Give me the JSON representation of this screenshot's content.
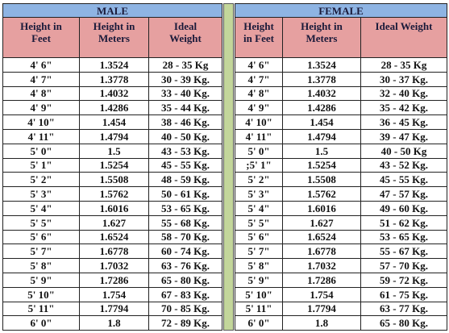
{
  "male": {
    "title": "MALE",
    "columns": [
      "Height in Feet",
      "Height in Meters",
      "Ideal Weight"
    ],
    "rows": [
      [
        "4' 6\"",
        "1.3524",
        "28 - 35 Kg"
      ],
      [
        "4' 7\"",
        "1.3778",
        "30 - 39 Kg."
      ],
      [
        "4' 8\"",
        "1.4032",
        "33 - 40 Kg."
      ],
      [
        "4' 9\"",
        "1.4286",
        "35 - 44 Kg."
      ],
      [
        "4' 10\"",
        "1.454",
        "38 - 46 Kg."
      ],
      [
        "4' 11\"",
        "1.4794",
        "40 - 50 Kg."
      ],
      [
        "5' 0\"",
        "1.5",
        "43 - 53 Kg."
      ],
      [
        "5' 1\"",
        "1.5254",
        "45 - 55 Kg."
      ],
      [
        "5' 2\"",
        "1.5508",
        "48 - 59 Kg."
      ],
      [
        "5' 3\"",
        "1.5762",
        "50 - 61 Kg."
      ],
      [
        "5' 4\"",
        "1.6016",
        "53 - 65 Kg."
      ],
      [
        "5' 5\"",
        "1.627",
        "55 - 68 Kg."
      ],
      [
        "5' 6\"",
        "1.6524",
        "58 - 70 Kg."
      ],
      [
        "5' 7\"",
        "1.6778",
        "60 - 74 Kg."
      ],
      [
        "5' 8\"",
        "1.7032",
        "63 - 76 Kg."
      ],
      [
        "5' 9\"",
        "1.7286",
        "65 - 80 Kg."
      ],
      [
        "5' 10\"",
        "1.754",
        "67 - 83 Kg."
      ],
      [
        "5' 11\"",
        "1.7794",
        "70 - 85 Kg."
      ],
      [
        "6' 0\"",
        "1.8",
        "72 - 89 Kg."
      ]
    ]
  },
  "female": {
    "title": "FEMALE",
    "columns": [
      "Height in Feet",
      "Height in Meters",
      "Ideal Weight"
    ],
    "rows": [
      [
        "4' 6\"",
        "1.3524",
        "28 - 35 Kg"
      ],
      [
        "4' 7\"",
        "1.3778",
        "30 - 37 Kg."
      ],
      [
        "4' 8\"",
        "1.4032",
        "32 - 40 Kg."
      ],
      [
        "4' 9\"",
        "1.4286",
        "35 - 42 Kg."
      ],
      [
        "4' 10\"",
        "1.454",
        "36 - 45 Kg."
      ],
      [
        "4' 11\"",
        "1.4794",
        "39 - 47 Kg."
      ],
      [
        "5' 0\"",
        "1.5",
        "40 - 50 Kg"
      ],
      [
        ";5' 1\"",
        "1.5254",
        "43 - 52 Kg."
      ],
      [
        "5' 2\"",
        "1.5508",
        "45 - 55 Kg."
      ],
      [
        "5' 3\"",
        "1.5762",
        "47 - 57 Kg."
      ],
      [
        "5' 4\"",
        "1.6016",
        "49 - 60 Kg."
      ],
      [
        "5' 5\"",
        "1.627",
        "51 - 62 Kg."
      ],
      [
        "5' 6\"",
        "1.6524",
        "53 - 65 Kg."
      ],
      [
        "5' 7\"",
        "1.6778",
        "55 - 67 Kg."
      ],
      [
        "5' 8\"",
        "1.7032",
        "57 - 70 Kg."
      ],
      [
        "5' 9\"",
        "1.7286",
        "59 - 72 Kg."
      ],
      [
        "5' 10\"",
        "1.754",
        "61 - 75 Kg."
      ],
      [
        "5' 11\"",
        "1.7794",
        "63 - 77 Kg."
      ],
      [
        "6' 0\"",
        "1.8",
        "65 - 80 Kg."
      ]
    ]
  }
}
